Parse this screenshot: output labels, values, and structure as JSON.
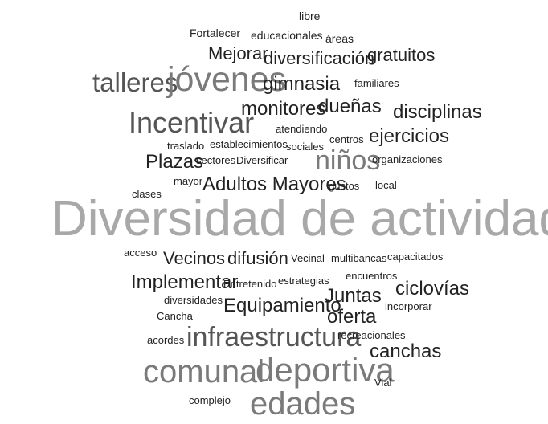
{
  "words": {
    "libre": "libre",
    "fortalecer": "Fortalecer",
    "educacionales": "educacionales",
    "areas": "áreas",
    "mejorar": "Mejorar",
    "diversificacion": "diversificación",
    "gratuitos": "gratuitos",
    "talleres": "talleres",
    "jovenes": "jóvenes",
    "gimnasia": "gimnasia",
    "familiares": "familiares",
    "monitores": "monitores",
    "duenas": "dueñas",
    "disciplinas": "disciplinas",
    "incentivar": "Incentivar",
    "atendiendo": "atendiendo",
    "centros": "centros",
    "ejercicios": "ejercicios",
    "traslado": "traslado",
    "establecimientos": "establecimientos",
    "sociales": "sociales",
    "plazas": "Plazas",
    "sectores": "sectores",
    "diversificar": "Diversificar",
    "ninos": "niños",
    "organizaciones": "organizaciones",
    "mayor": "mayor",
    "adultos_mayores": "Adultos Mayores",
    "gustos": "gustos",
    "local": "local",
    "clases": "clases",
    "diversidad": "Diversidad de actividades",
    "acceso": "acceso",
    "vecinos": "Vecinos",
    "difusion": "difusión",
    "vecinal": "Vecinal",
    "multibancas": "multibancas",
    "capacitados": "capacitados",
    "implementar": "Implementar",
    "entretenido": "Entretenido",
    "estrategias": "estrategias",
    "encuentros": "encuentros",
    "juntas": "Juntas",
    "ciclovias": "ciclovías",
    "diversidades": "diversidades",
    "equipamiento": "Equipamiento",
    "oferta": "oferta",
    "incorporar": "incorporar",
    "cancha": "Cancha",
    "acordes": "acordes",
    "infraestructura": "infraestructura",
    "recreacionales": "recreacionales",
    "canchas": "canchas",
    "comunal": "comunal",
    "deportiva": "deportiva",
    "vial": "Vial",
    "complejo": "complejo",
    "edades": "edades"
  }
}
